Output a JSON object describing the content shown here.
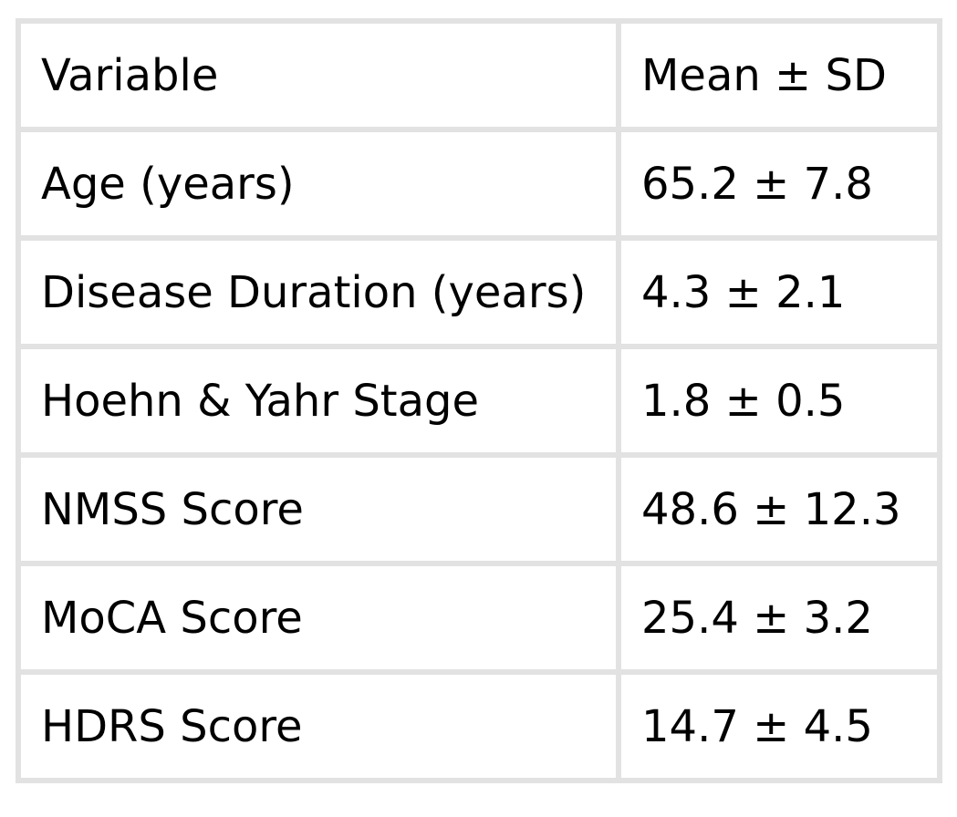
{
  "table": {
    "headers": [
      "Variable",
      "Mean ± SD"
    ],
    "rows": [
      [
        "Age (years)",
        "65.2 ± 7.8"
      ],
      [
        "Disease Duration (years)",
        "4.3 ± 2.1"
      ],
      [
        "Hoehn & Yahr Stage",
        "1.8 ± 0.5"
      ],
      [
        "NMSS Score",
        "48.6 ± 12.3"
      ],
      [
        "MoCA Score",
        "25.4 ± 3.2"
      ],
      [
        "HDRS Score",
        "14.7 ± 4.5"
      ]
    ],
    "border_color": "#e2e2e2",
    "cell_background": "#ffffff",
    "text_color": "#000000"
  },
  "chart_data": {
    "type": "table",
    "title": "",
    "columns": [
      "Variable",
      "Mean ± SD"
    ],
    "categories": [
      "Age (years)",
      "Disease Duration (years)",
      "Hoehn & Yahr Stage",
      "NMSS Score",
      "MoCA Score",
      "HDRS Score"
    ],
    "series": [
      {
        "name": "Mean",
        "values": [
          65.2,
          4.3,
          1.8,
          48.6,
          25.4,
          14.7
        ]
      },
      {
        "name": "SD",
        "values": [
          7.8,
          2.1,
          0.5,
          12.3,
          3.2,
          4.5
        ]
      }
    ],
    "rows": [
      [
        "Age (years)",
        "65.2 ± 7.8"
      ],
      [
        "Disease Duration (years)",
        "4.3 ± 2.1"
      ],
      [
        "Hoehn & Yahr Stage",
        "1.8 ± 0.5"
      ],
      [
        "NMSS Score",
        "48.6 ± 12.3"
      ],
      [
        "MoCA Score",
        "25.4 ± 3.2"
      ],
      [
        "HDRS Score",
        "14.7 ± 4.5"
      ]
    ]
  }
}
